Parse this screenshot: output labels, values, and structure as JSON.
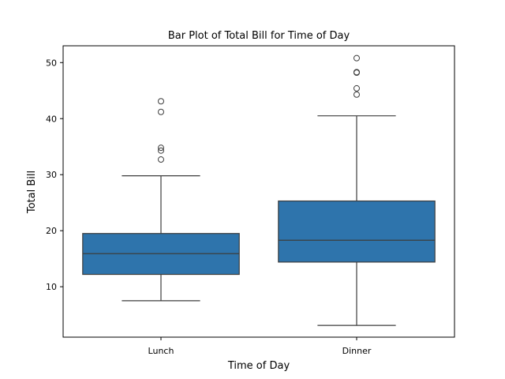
{
  "chart_data": {
    "type": "box",
    "title": "Bar Plot of Total Bill for Time of Day",
    "xlabel": "Time of Day",
    "ylabel": "Total Bill",
    "ylim": [
      1,
      53
    ],
    "yticks": [
      10,
      20,
      30,
      40,
      50
    ],
    "grid": false,
    "box_color": "#2e74ac",
    "line_color": "#3d3d3d",
    "categories": [
      "Lunch",
      "Dinner"
    ],
    "boxes": [
      {
        "category": "Lunch",
        "whisker_low": 7.5,
        "q1": 12.2,
        "median": 15.9,
        "q3": 19.5,
        "whisker_high": 29.8,
        "outliers": [
          32.7,
          34.3,
          34.8,
          41.2,
          43.1
        ]
      },
      {
        "category": "Dinner",
        "whisker_low": 3.1,
        "q1": 14.4,
        "median": 18.3,
        "q3": 25.3,
        "whisker_high": 40.5,
        "outliers": [
          44.3,
          45.4,
          48.2,
          48.3,
          50.8
        ]
      }
    ]
  }
}
